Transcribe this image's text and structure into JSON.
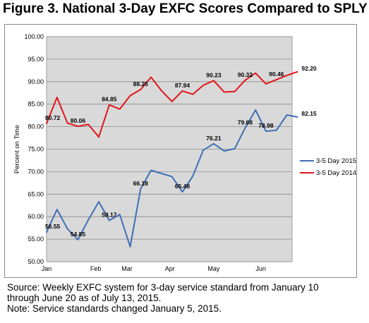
{
  "figure_title": "Figure 3. National 3-Day EXFC Scores Compared to SPLY",
  "source_lines": [
    "Source: Weekly EXFC system for 3-day service standard from January 10",
    "through June 20 as of July 13, 2015.",
    "Note: Service standards changed January 5, 2015."
  ],
  "chart_data": {
    "type": "line",
    "ylabel": "Percent on Time",
    "ylim": [
      50,
      100
    ],
    "y_ticks": [
      "50.00",
      "55.00",
      "60.00",
      "65.00",
      "70.00",
      "75.00",
      "80.00",
      "85.00",
      "90.00",
      "95.00",
      "100.00"
    ],
    "x_ticks": [
      {
        "label": "Jan",
        "week": 0
      },
      {
        "label": "Feb",
        "week": 4.7
      },
      {
        "label": "Mar",
        "week": 7.7
      },
      {
        "label": "Apr",
        "week": 11.8
      },
      {
        "label": "May",
        "week": 16.0
      },
      {
        "label": "Jun",
        "week": 20.5
      }
    ],
    "x_range": [
      0,
      23.5
    ],
    "grid": true,
    "legend_placement": "right",
    "series": [
      {
        "name": "3-5 Day 2015",
        "color": "#3f6fb6",
        "values": [
          56.55,
          61.6,
          57.3,
          54.85,
          59.3,
          63.3,
          59.17,
          60.5,
          53.3,
          66.18,
          70.3,
          69.6,
          68.9,
          65.48,
          69.0,
          74.8,
          76.21,
          74.6,
          75.1,
          79.68,
          83.7,
          78.98,
          79.2,
          82.6,
          82.15
        ]
      },
      {
        "name": "3-5 Day 2014",
        "color": "#e0161b",
        "values": [
          80.72,
          86.5,
          80.8,
          80.06,
          80.5,
          77.7,
          84.85,
          83.9,
          86.9,
          88.25,
          91.0,
          88.0,
          85.6,
          87.94,
          87.2,
          89.2,
          90.23,
          87.7,
          87.8,
          90.32,
          91.9,
          89.5,
          90.46,
          91.4,
          92.2
        ]
      }
    ],
    "data_labels": [
      {
        "series": 0,
        "index": 0,
        "text": "56.55"
      },
      {
        "series": 0,
        "index": 3,
        "text": "54.85"
      },
      {
        "series": 0,
        "index": 6,
        "text": "59.17"
      },
      {
        "series": 0,
        "index": 9,
        "text": "66.18"
      },
      {
        "series": 0,
        "index": 13,
        "text": "65.48"
      },
      {
        "series": 0,
        "index": 16,
        "text": "76.21"
      },
      {
        "series": 0,
        "index": 19,
        "text": "79.68"
      },
      {
        "series": 0,
        "index": 21,
        "text": "78.98"
      },
      {
        "series": 0,
        "index": 24,
        "text": "82.15"
      },
      {
        "series": 1,
        "index": 0,
        "text": "80.72"
      },
      {
        "series": 1,
        "index": 3,
        "text": "80.06"
      },
      {
        "series": 1,
        "index": 6,
        "text": "84.85"
      },
      {
        "series": 1,
        "index": 9,
        "text": "88.25"
      },
      {
        "series": 1,
        "index": 13,
        "text": "87.94"
      },
      {
        "series": 1,
        "index": 16,
        "text": "90.23"
      },
      {
        "series": 1,
        "index": 19,
        "text": "90.32"
      },
      {
        "series": 1,
        "index": 22,
        "text": "90.46"
      },
      {
        "series": 1,
        "index": 24,
        "text": "92.20"
      }
    ]
  }
}
